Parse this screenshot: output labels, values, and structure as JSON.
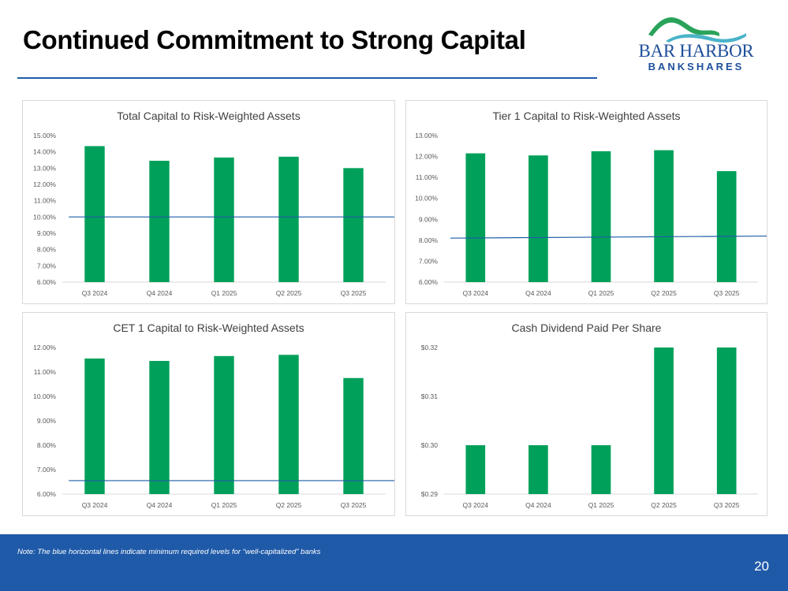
{
  "page": {
    "title": "Continued Commitment to Strong Capital",
    "logo": {
      "name": "BAR HARBOR",
      "sub": "BANKSHARES"
    },
    "note": "Note:  The blue horizontal lines indicate minimum required levels for “well-capitalized” banks",
    "page_number": "20"
  },
  "colors": {
    "bar": "#00a05a",
    "threshold": "#1f5da8",
    "footer": "#1f5aa8",
    "title_rule": "#1f5da8"
  },
  "chart_data": [
    {
      "type": "bar",
      "title": "Total Capital to Risk-Weighted Assets",
      "categories": [
        "Q3 2024",
        "Q4 2024",
        "Q1 2025",
        "Q2 2025",
        "Q3 2025"
      ],
      "values": [
        14.35,
        13.45,
        13.65,
        13.7,
        13.0
      ],
      "ylim": [
        6,
        15
      ],
      "yticks": [
        6,
        7,
        8,
        9,
        10,
        11,
        12,
        13,
        14,
        15
      ],
      "ytick_labels": [
        "6.00%",
        "7.00%",
        "8.00%",
        "9.00%",
        "10.00%",
        "11.00%",
        "12.00%",
        "13.00%",
        "14.00%",
        "15.00%"
      ],
      "threshold": {
        "y0": 10.0,
        "y1": 10.0,
        "x_start": -0.4,
        "x_end": 4.8
      }
    },
    {
      "type": "bar",
      "title": "Tier 1 Capital to Risk-Weighted Assets",
      "categories": [
        "Q3 2024",
        "Q4 2024",
        "Q1 2025",
        "Q2 2025",
        "Q3 2025"
      ],
      "values": [
        12.15,
        12.05,
        12.25,
        12.3,
        11.3
      ],
      "ylim": [
        6,
        13
      ],
      "yticks": [
        6,
        7,
        8,
        9,
        10,
        11,
        12,
        13
      ],
      "ytick_labels": [
        "6.00%",
        "7.00%",
        "8.00%",
        "9.00%",
        "10.00%",
        "11.00%",
        "12.00%",
        "13.00%"
      ],
      "threshold": {
        "y0": 8.1,
        "y1": 8.2,
        "x_start": -0.4,
        "x_end": 5.3
      }
    },
    {
      "type": "bar",
      "title": "CET 1 Capital to Risk-Weighted Assets",
      "categories": [
        "Q3 2024",
        "Q4 2024",
        "Q1 2025",
        "Q2 2025",
        "Q3 2025"
      ],
      "values": [
        11.55,
        11.45,
        11.65,
        11.7,
        10.75
      ],
      "ylim": [
        6,
        12
      ],
      "yticks": [
        6,
        7,
        8,
        9,
        10,
        11,
        12
      ],
      "ytick_labels": [
        "6.00%",
        "7.00%",
        "8.00%",
        "9.00%",
        "10.00%",
        "11.00%",
        "12.00%"
      ],
      "threshold": {
        "y0": 6.55,
        "y1": 6.55,
        "x_start": -0.4,
        "x_end": 4.65
      }
    },
    {
      "type": "bar",
      "title": "Cash Dividend Paid Per Share",
      "categories": [
        "Q3 2024",
        "Q4 2024",
        "Q1 2025",
        "Q2 2025",
        "Q3 2025"
      ],
      "values": [
        0.3,
        0.3,
        0.3,
        0.32,
        0.32
      ],
      "ylim": [
        0.29,
        0.32
      ],
      "yticks": [
        0.29,
        0.3,
        0.31,
        0.32
      ],
      "ytick_labels": [
        "$0.29",
        "$0.30",
        "$0.31",
        "$0.32"
      ]
    }
  ]
}
